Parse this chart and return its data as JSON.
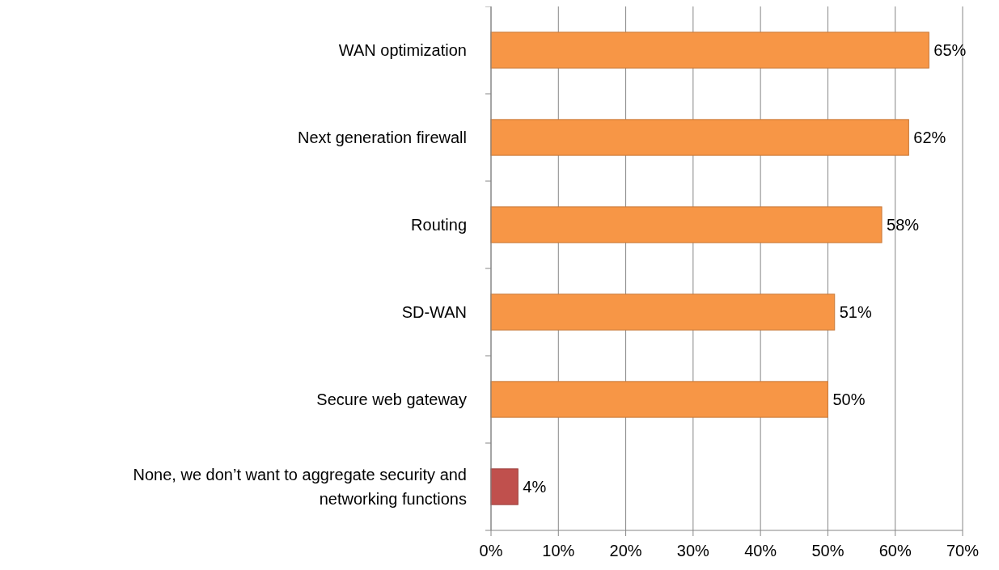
{
  "chart_data": {
    "type": "bar",
    "orientation": "horizontal",
    "categories": [
      "WAN optimization",
      "Next generation firewall",
      "Routing",
      "SD-WAN",
      "Secure web gateway",
      "None, we don’t want to aggregate security and networking functions"
    ],
    "values": [
      65,
      62,
      58,
      51,
      50,
      4
    ],
    "colors": [
      "#f79646",
      "#f79646",
      "#f79646",
      "#f79646",
      "#f79646",
      "#c0504d"
    ],
    "value_labels": [
      "65%",
      "62%",
      "58%",
      "51%",
      "50%",
      "4%"
    ],
    "xlim": [
      0,
      70
    ],
    "xticks": [
      {
        "value": 0,
        "label": "0%"
      },
      {
        "value": 10,
        "label": "10%"
      },
      {
        "value": 20,
        "label": "20%"
      },
      {
        "value": 30,
        "label": "30%"
      },
      {
        "value": 40,
        "label": "40%"
      },
      {
        "value": 50,
        "label": "50%"
      },
      {
        "value": 60,
        "label": "60%"
      },
      {
        "value": 70,
        "label": "70%"
      }
    ],
    "grid": "x"
  }
}
